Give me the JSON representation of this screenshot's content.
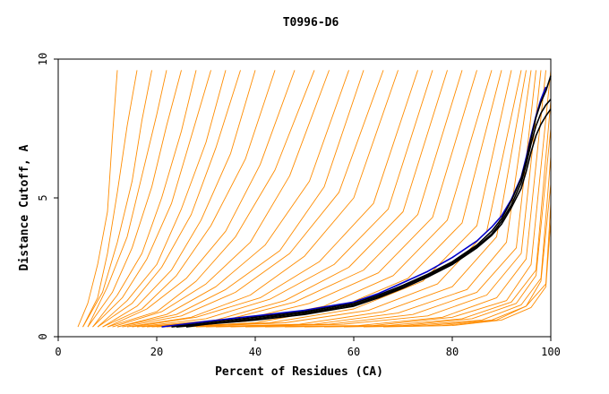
{
  "chart_data": {
    "type": "line",
    "title": "T0996-D6",
    "xlabel": "Percent of Residues (CA)",
    "ylabel": "Distance Cutoff, A",
    "xlim": [
      0,
      100
    ],
    "ylim": [
      0,
      10
    ],
    "x_ticks": [
      "0",
      "20",
      "40",
      "60",
      "80",
      "100"
    ],
    "y_ticks": [
      "0",
      "5",
      "10"
    ],
    "grid": false,
    "colors": {
      "background_models": "#ff8c00",
      "highlight_blue": "#0000cc",
      "highlight_black": "#000000"
    },
    "series": [
      {
        "role": "highlight",
        "color": "#0000cc",
        "x": [
          21,
          30,
          40,
          50,
          60,
          65,
          70,
          75,
          80,
          85,
          88,
          90,
          92,
          94,
          95,
          96,
          97,
          98,
          99
        ],
        "y": [
          0.35,
          0.55,
          0.75,
          0.95,
          1.25,
          1.55,
          1.95,
          2.35,
          2.85,
          3.45,
          3.95,
          4.35,
          4.95,
          5.75,
          6.45,
          7.25,
          7.95,
          8.55,
          9.0
        ]
      },
      {
        "role": "highlight",
        "color": "#000000",
        "x": [
          23,
          30,
          40,
          50,
          60,
          65,
          70,
          75,
          80,
          85,
          88,
          90,
          92,
          94,
          95,
          96,
          97,
          98,
          99,
          100
        ],
        "y": [
          0.35,
          0.5,
          0.7,
          0.9,
          1.2,
          1.5,
          1.85,
          2.25,
          2.7,
          3.3,
          3.8,
          4.25,
          4.9,
          5.7,
          6.35,
          7.15,
          7.9,
          8.45,
          8.85,
          9.4
        ]
      },
      {
        "role": "highlight",
        "color": "#000000",
        "x": [
          24,
          30,
          40,
          50,
          60,
          65,
          70,
          75,
          80,
          85,
          88,
          90,
          92,
          94,
          95,
          96,
          97,
          98,
          99,
          100
        ],
        "y": [
          0.35,
          0.45,
          0.65,
          0.85,
          1.15,
          1.45,
          1.8,
          2.2,
          2.65,
          3.25,
          3.7,
          4.15,
          4.75,
          5.55,
          6.2,
          6.95,
          7.6,
          8.05,
          8.35,
          8.55
        ]
      },
      {
        "role": "highlight",
        "color": "#000000",
        "x": [
          26,
          30,
          40,
          50,
          60,
          65,
          70,
          75,
          80,
          85,
          88,
          90,
          92,
          94,
          95,
          96,
          97,
          98,
          99,
          100
        ],
        "y": [
          0.35,
          0.45,
          0.6,
          0.8,
          1.1,
          1.4,
          1.75,
          2.15,
          2.6,
          3.2,
          3.65,
          4.05,
          4.65,
          5.35,
          5.95,
          6.65,
          7.25,
          7.65,
          7.95,
          8.2
        ]
      },
      {
        "role": "model",
        "x": [
          4,
          6,
          8,
          10,
          11,
          12
        ],
        "y": [
          0.35,
          1.2,
          2.6,
          4.5,
          7.2,
          9.6
        ]
      },
      {
        "role": "model",
        "x": [
          5,
          8,
          10,
          12,
          14,
          16
        ],
        "y": [
          0.35,
          1.4,
          3.0,
          5.2,
          7.6,
          9.6
        ]
      },
      {
        "role": "model",
        "x": [
          5,
          9,
          12,
          15,
          17,
          19
        ],
        "y": [
          0.35,
          1.6,
          3.4,
          5.6,
          7.8,
          9.6
        ]
      },
      {
        "role": "model",
        "x": [
          6,
          10,
          14,
          17,
          20,
          22
        ],
        "y": [
          0.35,
          1.8,
          3.6,
          5.8,
          8.0,
          9.6
        ]
      },
      {
        "role": "model",
        "x": [
          6,
          11,
          15,
          19,
          22,
          25
        ],
        "y": [
          0.35,
          1.6,
          3.2,
          5.4,
          7.6,
          9.6
        ]
      },
      {
        "role": "model",
        "x": [
          7,
          12,
          17,
          21,
          25,
          28
        ],
        "y": [
          0.35,
          1.5,
          3.0,
          5.0,
          7.4,
          9.6
        ]
      },
      {
        "role": "model",
        "x": [
          7,
          13,
          18,
          23,
          27,
          31
        ],
        "y": [
          0.35,
          1.4,
          2.8,
          4.8,
          7.2,
          9.6
        ]
      },
      {
        "role": "model",
        "x": [
          8,
          14,
          20,
          25,
          30,
          34
        ],
        "y": [
          0.35,
          1.3,
          2.6,
          4.6,
          7.0,
          9.6
        ]
      },
      {
        "role": "model",
        "x": [
          8,
          15,
          21,
          27,
          32,
          37
        ],
        "y": [
          0.35,
          1.2,
          2.5,
          4.4,
          6.8,
          9.6
        ]
      },
      {
        "role": "model",
        "x": [
          9,
          16,
          23,
          29,
          35,
          40
        ],
        "y": [
          0.35,
          1.1,
          2.4,
          4.2,
          6.6,
          9.6
        ]
      },
      {
        "role": "model",
        "x": [
          9,
          17,
          24,
          31,
          38,
          44
        ],
        "y": [
          0.35,
          1.0,
          2.2,
          4.0,
          6.4,
          9.6
        ]
      },
      {
        "role": "model",
        "x": [
          10,
          18,
          26,
          34,
          41,
          48
        ],
        "y": [
          0.35,
          1.0,
          2.1,
          3.8,
          6.2,
          9.6
        ]
      },
      {
        "role": "model",
        "x": [
          10,
          20,
          28,
          36,
          44,
          52
        ],
        "y": [
          0.35,
          0.9,
          2.0,
          3.6,
          6.0,
          9.6
        ]
      },
      {
        "role": "model",
        "x": [
          11,
          21,
          30,
          39,
          47,
          55
        ],
        "y": [
          0.35,
          0.9,
          1.9,
          3.4,
          5.8,
          9.6
        ]
      },
      {
        "role": "model",
        "x": [
          12,
          22,
          32,
          42,
          51,
          59
        ],
        "y": [
          0.35,
          0.8,
          1.8,
          3.3,
          5.6,
          9.6
        ]
      },
      {
        "role": "model",
        "x": [
          12,
          24,
          34,
          45,
          54,
          62
        ],
        "y": [
          0.35,
          0.8,
          1.7,
          3.1,
          5.4,
          9.6
        ]
      },
      {
        "role": "model",
        "x": [
          13,
          25,
          36,
          47,
          57,
          66
        ],
        "y": [
          0.35,
          0.75,
          1.6,
          3.0,
          5.2,
          9.6
        ]
      },
      {
        "role": "model",
        "x": [
          14,
          27,
          39,
          50,
          60,
          69
        ],
        "y": [
          0.35,
          0.7,
          1.5,
          2.9,
          5.0,
          9.6
        ]
      },
      {
        "role": "model",
        "x": [
          15,
          28,
          41,
          53,
          64,
          73
        ],
        "y": [
          0.35,
          0.7,
          1.4,
          2.7,
          4.8,
          9.6
        ]
      },
      {
        "role": "model",
        "x": [
          16,
          30,
          43,
          56,
          67,
          76
        ],
        "y": [
          0.35,
          0.65,
          1.35,
          2.6,
          4.6,
          9.6
        ]
      },
      {
        "role": "model",
        "x": [
          17,
          32,
          46,
          59,
          70,
          79
        ],
        "y": [
          0.35,
          0.6,
          1.3,
          2.5,
          4.5,
          9.6
        ]
      },
      {
        "role": "model",
        "x": [
          18,
          34,
          48,
          62,
          73,
          82
        ],
        "y": [
          0.35,
          0.6,
          1.25,
          2.4,
          4.4,
          9.6
        ]
      },
      {
        "role": "model",
        "x": [
          19,
          36,
          51,
          65,
          76,
          85
        ],
        "y": [
          0.35,
          0.55,
          1.2,
          2.3,
          4.3,
          9.6
        ]
      },
      {
        "role": "model",
        "x": [
          20,
          38,
          54,
          68,
          79,
          88
        ],
        "y": [
          0.35,
          0.55,
          1.1,
          2.2,
          4.2,
          9.6
        ]
      },
      {
        "role": "model",
        "x": [
          22,
          40,
          57,
          71,
          82,
          90
        ],
        "y": [
          0.35,
          0.5,
          1.05,
          2.1,
          4.1,
          9.6
        ]
      },
      {
        "role": "model",
        "x": [
          24,
          43,
          60,
          74,
          85,
          92
        ],
        "y": [
          0.35,
          0.5,
          1.0,
          2.0,
          4.0,
          9.6
        ]
      },
      {
        "role": "model",
        "x": [
          26,
          46,
          63,
          77,
          87,
          94
        ],
        "y": [
          0.35,
          0.5,
          0.95,
          1.9,
          3.8,
          9.6
        ]
      },
      {
        "role": "model",
        "x": [
          28,
          49,
          66,
          80,
          89,
          95
        ],
        "y": [
          0.35,
          0.45,
          0.9,
          1.8,
          3.6,
          9.6
        ]
      },
      {
        "role": "model",
        "x": [
          30,
          52,
          69,
          83,
          91,
          96
        ],
        "y": [
          0.35,
          0.45,
          0.85,
          1.7,
          3.4,
          9.6
        ]
      },
      {
        "role": "model",
        "x": [
          32,
          55,
          72,
          85,
          93,
          97
        ],
        "y": [
          0.35,
          0.45,
          0.8,
          1.6,
          3.2,
          9.6
        ]
      },
      {
        "role": "model",
        "x": [
          35,
          58,
          75,
          87,
          94,
          98
        ],
        "y": [
          0.35,
          0.45,
          0.75,
          1.5,
          3.0,
          9.6
        ]
      },
      {
        "role": "model",
        "x": [
          38,
          61,
          78,
          89,
          95,
          99
        ],
        "y": [
          0.35,
          0.4,
          0.7,
          1.4,
          2.8,
          9.6
        ]
      },
      {
        "role": "model",
        "x": [
          42,
          64,
          80,
          91,
          96,
          100
        ],
        "y": [
          0.35,
          0.4,
          0.7,
          1.3,
          2.6,
          9.6
        ]
      },
      {
        "role": "model",
        "x": [
          46,
          67,
          82,
          92,
          97,
          100
        ],
        "y": [
          0.35,
          0.4,
          0.65,
          1.25,
          2.4,
          8.5
        ]
      },
      {
        "role": "model",
        "x": [
          50,
          70,
          84,
          93,
          97,
          100
        ],
        "y": [
          0.35,
          0.4,
          0.65,
          1.2,
          2.2,
          7.5
        ]
      },
      {
        "role": "model",
        "x": [
          54,
          72,
          86,
          94,
          98,
          100
        ],
        "y": [
          0.35,
          0.4,
          0.6,
          1.15,
          2.1,
          6.5
        ]
      },
      {
        "role": "model",
        "x": [
          58,
          75,
          88,
          95,
          98,
          100
        ],
        "y": [
          0.35,
          0.4,
          0.6,
          1.1,
          2.0,
          5.5
        ]
      },
      {
        "role": "model",
        "x": [
          62,
          78,
          89,
          95,
          99,
          100
        ],
        "y": [
          0.35,
          0.4,
          0.6,
          1.1,
          1.9,
          4.8
        ]
      },
      {
        "role": "model",
        "x": [
          66,
          80,
          90,
          96,
          99,
          100
        ],
        "y": [
          0.35,
          0.4,
          0.6,
          1.05,
          1.8,
          4.2
        ]
      }
    ]
  }
}
